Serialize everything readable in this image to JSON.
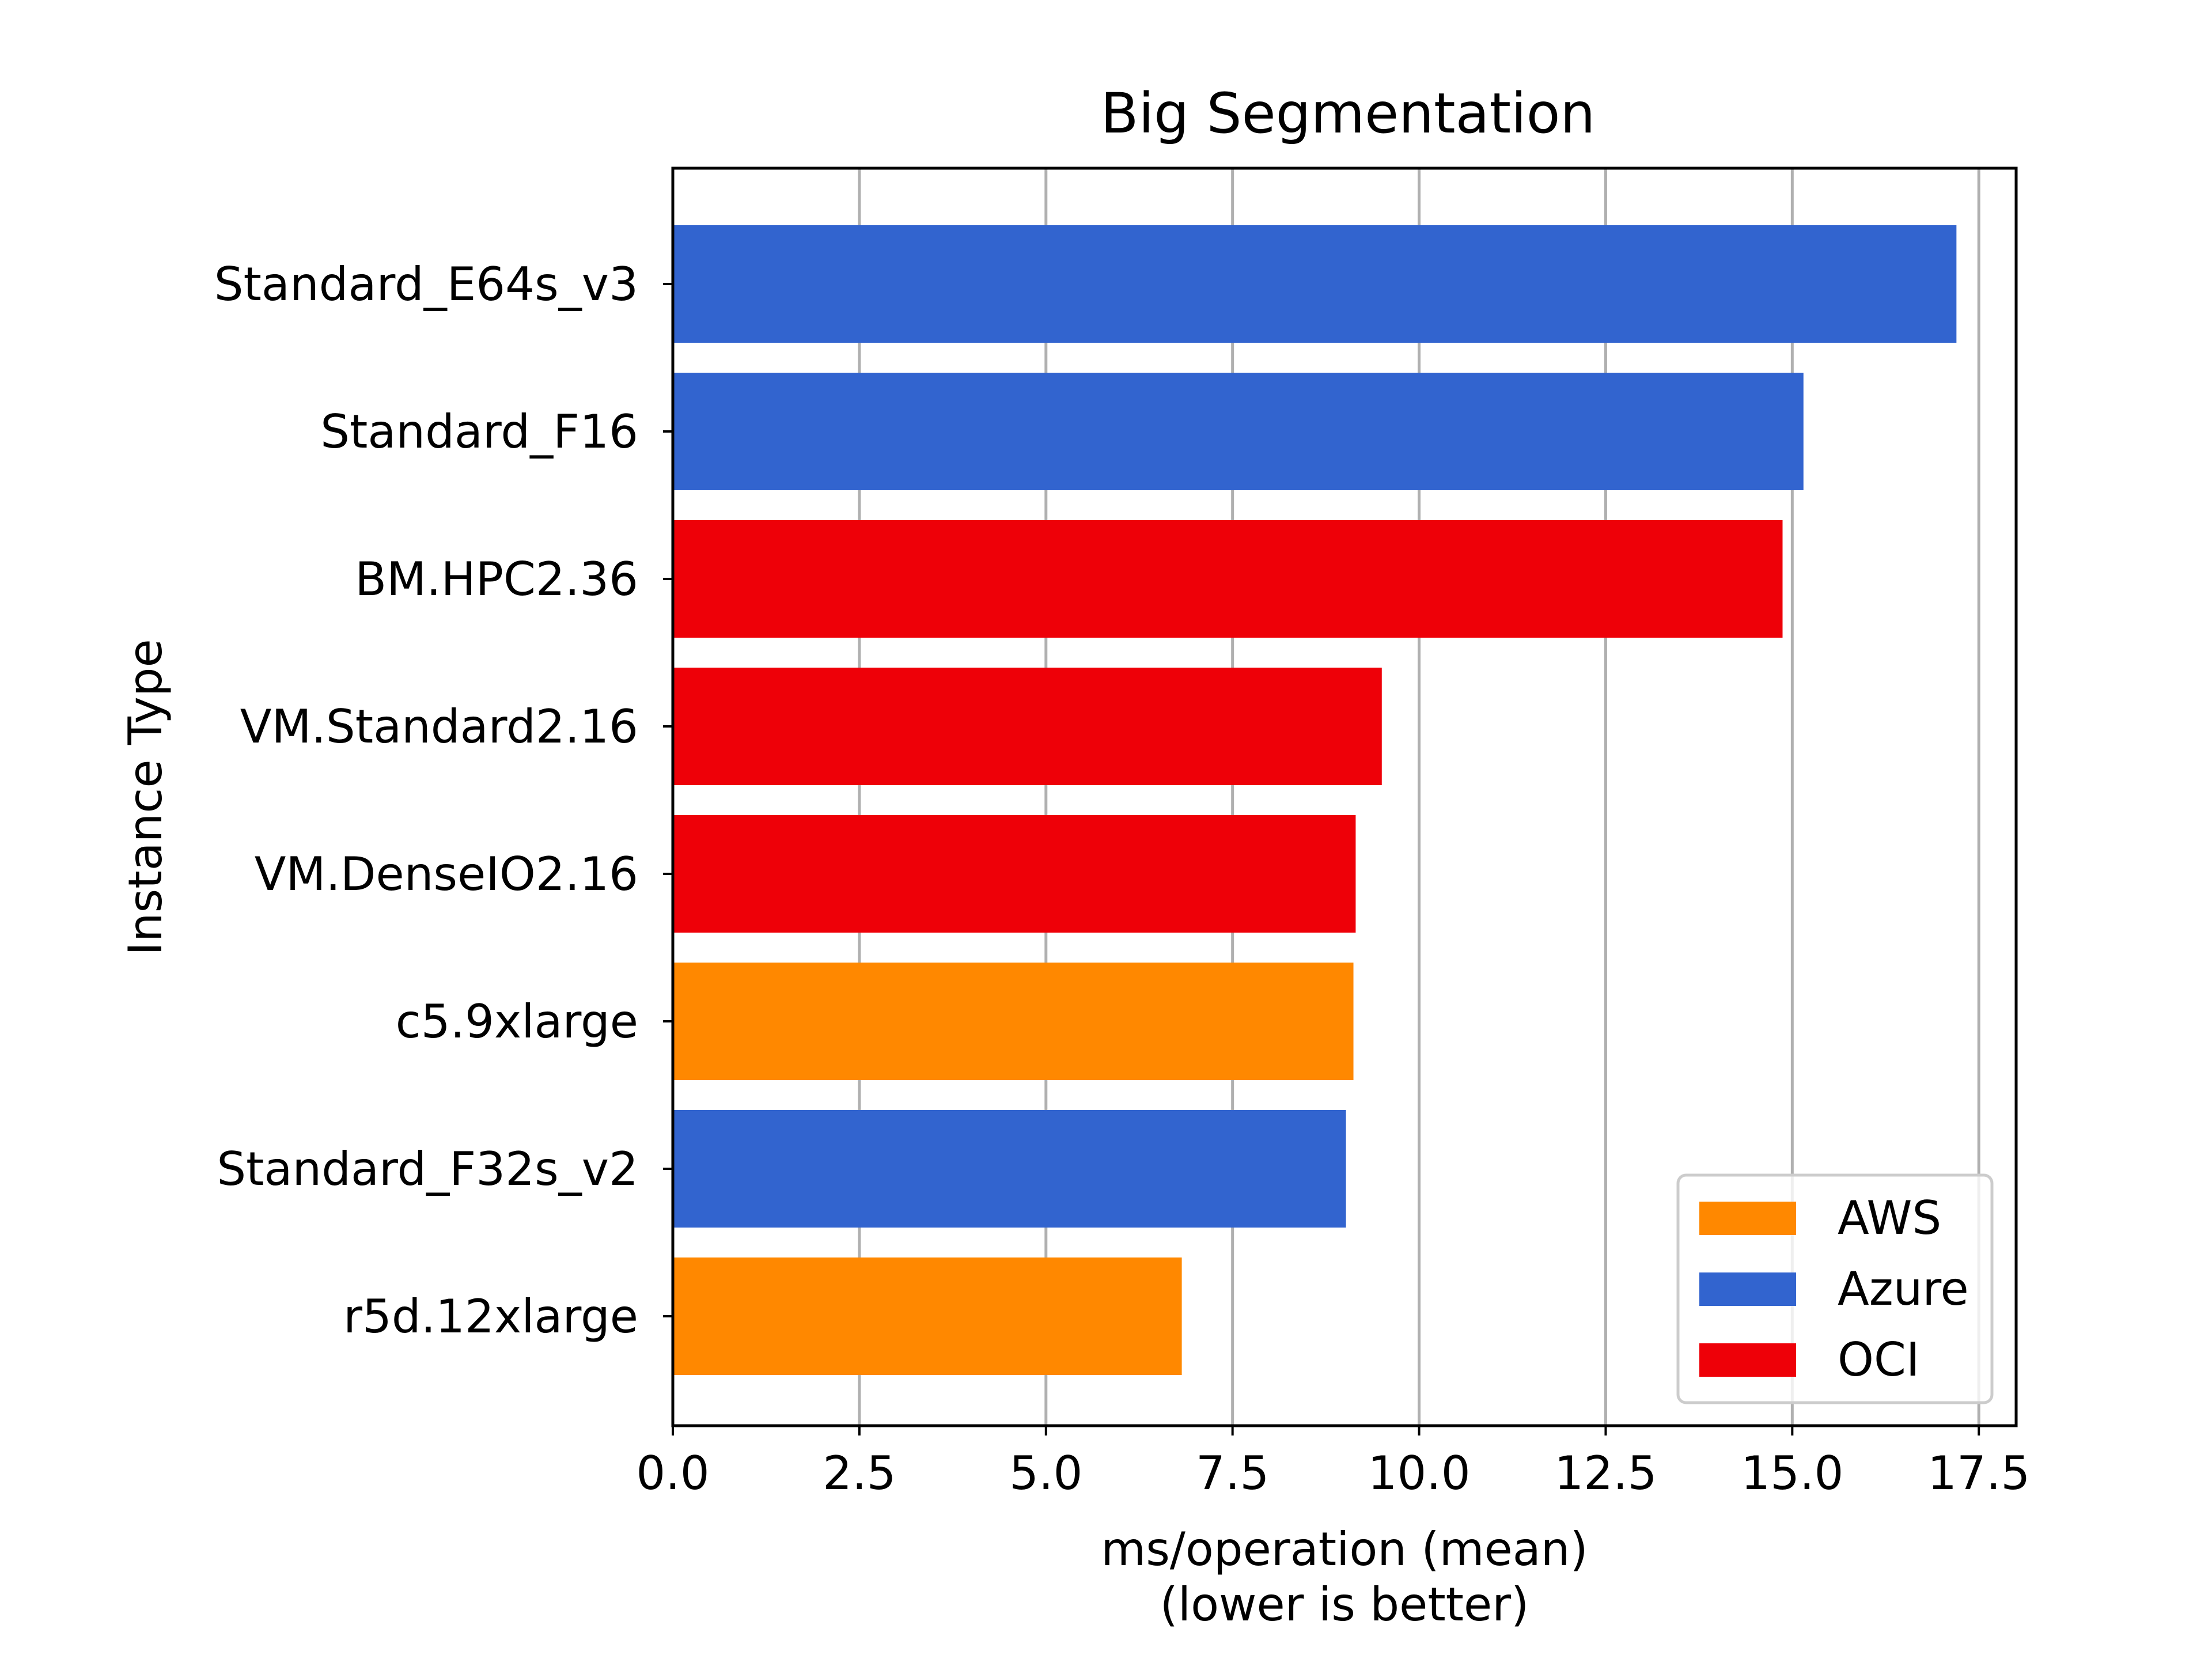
{
  "chart_data": {
    "type": "bar",
    "orientation": "horizontal",
    "title": "Big Segmentation",
    "xlabel_line1": "ms/operation (mean)",
    "xlabel_line2": "(lower is better)",
    "ylabel": "Instance Type",
    "xlim": [
      0,
      18.0
    ],
    "xticks": [
      "0.0",
      "2.5",
      "5.0",
      "7.5",
      "10.0",
      "12.5",
      "15.0",
      "17.5"
    ],
    "xtick_values": [
      0,
      2.5,
      5,
      7.5,
      10,
      12.5,
      15,
      17.5
    ],
    "grid": "vertical",
    "legend_position": "lower-right",
    "categories": [
      "Standard_E64s_v3",
      "Standard_F16",
      "BM.HPC2.36",
      "VM.Standard2.16",
      "VM.DenseIO2.16",
      "c5.9xlarge",
      "Standard_F32s_v2",
      "r5d.12xlarge"
    ],
    "values": [
      17.2,
      15.15,
      14.87,
      9.5,
      9.15,
      9.12,
      9.02,
      6.82
    ],
    "providers": [
      "Azure",
      "Azure",
      "OCI",
      "OCI",
      "OCI",
      "AWS",
      "Azure",
      "AWS"
    ],
    "legend": [
      {
        "name": "AWS",
        "color": "#ff8800"
      },
      {
        "name": "Azure",
        "color": "#3264cf"
      },
      {
        "name": "OCI",
        "color": "#ee0008"
      }
    ]
  }
}
